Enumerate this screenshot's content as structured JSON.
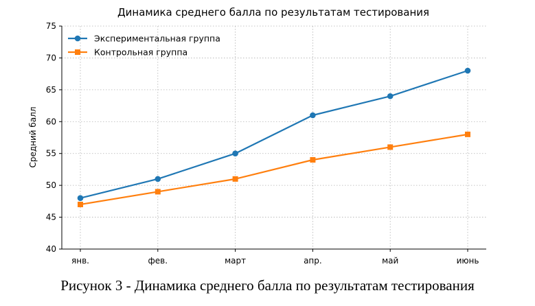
{
  "chart_data": {
    "type": "line",
    "title": "Динамика среднего балла по результатам тестирования",
    "xlabel": "",
    "ylabel": "Средний балл",
    "categories": [
      "янв.",
      "фев.",
      "март",
      "апр.",
      "май",
      "июнь"
    ],
    "ylim": [
      40,
      75
    ],
    "yticks": [
      40,
      45,
      50,
      55,
      60,
      65,
      70,
      75
    ],
    "grid": true,
    "legend_position": "top-left",
    "series": [
      {
        "name": "Экспериментальная группа",
        "values": [
          48,
          51,
          55,
          61,
          64,
          68
        ],
        "color": "#1f77b4",
        "marker": "circle"
      },
      {
        "name": "Контрольная группа",
        "values": [
          47,
          49,
          51,
          54,
          56,
          58
        ],
        "color": "#ff7f0e",
        "marker": "square"
      }
    ]
  },
  "caption": "Рисунок 3 - Динамика среднего балла по результатам тестирования"
}
